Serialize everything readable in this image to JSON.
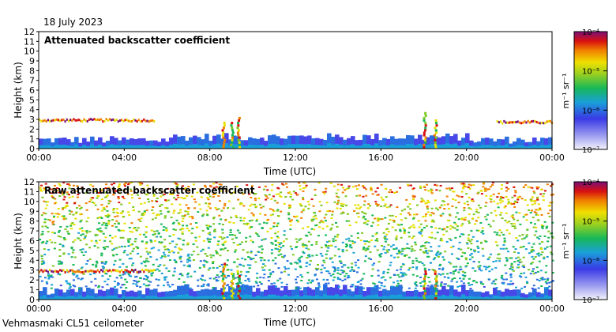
{
  "date": "18 July 2023",
  "instrument": "Vehmasmaki CL51 ceilometer",
  "chart_data": [
    {
      "type": "heatmap",
      "title": "Attenuated backscatter coefficient",
      "xlabel": "Time (UTC)",
      "ylabel": "Height (km)",
      "xlim": [
        0,
        24
      ],
      "ylim": [
        0,
        12
      ],
      "x_ticks": [
        "00:00",
        "04:00",
        "08:00",
        "12:00",
        "16:00",
        "20:00",
        "00:00"
      ],
      "y_ticks": [
        "0",
        "1",
        "2",
        "3",
        "4",
        "5",
        "6",
        "7",
        "8",
        "9",
        "10",
        "11",
        "12"
      ],
      "colorbar": {
        "label": "m⁻¹ sr⁻¹",
        "ticks": [
          "10⁻⁴",
          "10⁻⁵",
          "10⁻⁶",
          "10⁻⁷"
        ],
        "range": [
          1e-07,
          0.0001
        ]
      },
      "features": [
        {
          "name": "aerosol boundary layer",
          "from_h": 0,
          "to_h": 24,
          "height_km": [
            0,
            1.2
          ]
        },
        {
          "name": "cloud layer",
          "from_h": 0,
          "to_h": 5.4,
          "height_km": 2.9
        },
        {
          "name": "cloud layer",
          "from_h": 21.4,
          "to_h": 24,
          "height_km": 2.7
        },
        {
          "name": "precipitation streaks",
          "times_h": [
            8.6,
            9.0,
            9.3,
            18.0,
            18.5
          ]
        }
      ]
    },
    {
      "type": "heatmap",
      "title": "Raw attenuated backscatter coefficient",
      "xlabel": "Time (UTC)",
      "ylabel": "Height (km)",
      "xlim": [
        0,
        24
      ],
      "ylim": [
        0,
        12
      ],
      "x_ticks": [
        "00:00",
        "04:00",
        "08:00",
        "12:00",
        "16:00",
        "20:00",
        "00:00"
      ],
      "y_ticks": [
        "0",
        "1",
        "2",
        "3",
        "4",
        "5",
        "6",
        "7",
        "8",
        "9",
        "10",
        "11",
        "12"
      ],
      "colorbar": {
        "label": "m⁻¹ sr⁻¹",
        "ticks": [
          "10⁻⁴",
          "10⁻⁵",
          "10⁻⁶",
          "10⁻⁷"
        ],
        "range": [
          1e-07,
          0.0001
        ]
      },
      "features": [
        {
          "name": "noise increasing with height",
          "from_h": 0,
          "to_h": 24
        },
        {
          "name": "cloud layer",
          "from_h": 0,
          "to_h": 5.4,
          "height_km": 2.9
        },
        {
          "name": "precipitation streaks",
          "times_h": [
            8.6,
            9.0,
            9.3,
            18.0,
            18.5
          ]
        }
      ]
    }
  ]
}
